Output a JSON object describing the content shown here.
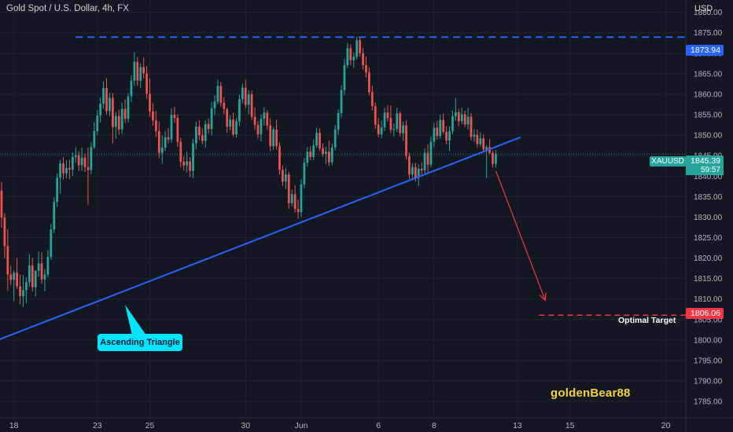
{
  "header": {
    "title": "Gold Spot / U.S. Dollar, 4h, FX",
    "currency": "USD"
  },
  "price_tags": {
    "top_level": "1873.94",
    "current_symbol": "XAUUSD",
    "current_price": "1845.39",
    "countdown": "59:57",
    "target_level": "1806.06"
  },
  "annotations": {
    "callout": "Ascending Triangle",
    "target_label": "Optimal Target",
    "watermark": "goldenBear88"
  },
  "colors": {
    "background": "#131722",
    "up": "#26a69a",
    "down": "#ef5350",
    "trendline": "#2962ff",
    "resistance": "#2962ff",
    "target": "#f23645",
    "callout": "#00e5ff",
    "watermark": "#f5d33c"
  },
  "chart_data": {
    "type": "candlestick",
    "title": "Gold Spot / U.S. Dollar, 4h, FX",
    "y_ticks": [
      1785,
      1790,
      1795,
      1800,
      1805,
      1810,
      1815,
      1820,
      1825,
      1830,
      1835,
      1840,
      1845,
      1850,
      1855,
      1860,
      1865,
      1870,
      1875,
      1880
    ],
    "y_tick_labels": [
      "1785.00",
      "1790.00",
      "1795.00",
      "1800.00",
      "1805.00",
      "1810.00",
      "1815.00",
      "1820.00",
      "1825.00",
      "1830.00",
      "1835.00",
      "1840.00",
      "1845.00",
      "1850.00",
      "1855.00",
      "1860.00",
      "1865.00",
      "1870.00",
      "1875.00",
      "1880.00"
    ],
    "ylim": [
      1781,
      1883
    ],
    "x_ticks": [
      "18",
      "23",
      "25",
      "30",
      "Jun",
      "6",
      "8",
      "13",
      "15",
      "20"
    ],
    "x_tick_bars": [
      4,
      31,
      48,
      79,
      97,
      122,
      140,
      167,
      184,
      215
    ],
    "n_bars_visible": 222,
    "grid": true,
    "resistance": {
      "level": 1873.94,
      "start_bar": 24
    },
    "trendline": {
      "start": [
        0,
        1800.2
      ],
      "end": [
        168,
        1849.5
      ]
    },
    "projection": {
      "start": [
        160,
        1841.3
      ],
      "end": [
        176,
        1809.7
      ]
    },
    "target": {
      "level": 1806.06,
      "start_bar": 174
    },
    "current_price": 1845.39,
    "candles": [
      [
        1836.5,
        1838.6,
        1827.4,
        1829.9
      ],
      [
        1829.9,
        1831.0,
        1820.0,
        1822.9
      ],
      [
        1822.9,
        1827.0,
        1812.0,
        1816.0
      ],
      [
        1816.0,
        1818.1,
        1813.4,
        1814.7
      ],
      [
        1814.7,
        1817.0,
        1809.5,
        1816.4
      ],
      [
        1816.4,
        1820.0,
        1812.5,
        1813.1
      ],
      [
        1813.1,
        1816.0,
        1808.7,
        1810.7
      ],
      [
        1810.7,
        1815.8,
        1808.1,
        1812.2
      ],
      [
        1812.2,
        1815.3,
        1809.0,
        1814.1
      ],
      [
        1814.1,
        1821.0,
        1813.0,
        1818.2
      ],
      [
        1818.2,
        1820.1,
        1811.8,
        1812.9
      ],
      [
        1812.9,
        1817.0,
        1810.6,
        1816.9
      ],
      [
        1816.9,
        1821.6,
        1815.4,
        1818.7
      ],
      [
        1818.7,
        1821.4,
        1813.7,
        1814.8
      ],
      [
        1814.8,
        1817.4,
        1811.9,
        1816.0
      ],
      [
        1816.0,
        1822.0,
        1815.3,
        1820.3
      ],
      [
        1820.3,
        1828.3,
        1819.6,
        1827.0
      ],
      [
        1827.0,
        1834.8,
        1826.1,
        1833.7
      ],
      [
        1833.7,
        1840.7,
        1832.5,
        1839.6
      ],
      [
        1839.6,
        1844.0,
        1835.7,
        1843.1
      ],
      [
        1843.1,
        1844.6,
        1839.2,
        1840.7
      ],
      [
        1840.7,
        1843.9,
        1839.5,
        1842.0
      ],
      [
        1842.0,
        1844.0,
        1839.3,
        1841.6
      ],
      [
        1841.6,
        1845.8,
        1840.1,
        1844.7
      ],
      [
        1844.7,
        1847.1,
        1843.2,
        1845.1
      ],
      [
        1845.1,
        1846.0,
        1841.2,
        1842.7
      ],
      [
        1842.7,
        1846.9,
        1841.2,
        1844.5
      ],
      [
        1844.5,
        1845.5,
        1841.0,
        1842.2
      ],
      [
        1842.2,
        1847.0,
        1833.0,
        1841.5
      ],
      [
        1841.5,
        1848.2,
        1840.4,
        1847.1
      ],
      [
        1847.1,
        1853.2,
        1846.6,
        1851.0
      ],
      [
        1851.0,
        1856.1,
        1850.0,
        1854.8
      ],
      [
        1854.8,
        1859.2,
        1853.1,
        1857.7
      ],
      [
        1857.7,
        1863.2,
        1856.5,
        1861.5
      ],
      [
        1861.5,
        1863.9,
        1855.0,
        1855.9
      ],
      [
        1855.9,
        1860.4,
        1854.6,
        1859.1
      ],
      [
        1859.1,
        1860.3,
        1848.0,
        1852.0
      ],
      [
        1852.0,
        1855.7,
        1849.1,
        1854.7
      ],
      [
        1854.7,
        1856.2,
        1850.1,
        1851.4
      ],
      [
        1851.4,
        1857.9,
        1850.3,
        1856.4
      ],
      [
        1856.4,
        1858.8,
        1853.0,
        1854.0
      ],
      [
        1854.0,
        1860.3,
        1853.1,
        1859.5
      ],
      [
        1859.5,
        1864.6,
        1858.1,
        1863.3
      ],
      [
        1863.3,
        1870.3,
        1862.1,
        1867.9
      ],
      [
        1867.9,
        1869.1,
        1862.0,
        1863.3
      ],
      [
        1863.3,
        1867.5,
        1861.6,
        1866.6
      ],
      [
        1866.6,
        1868.9,
        1863.8,
        1865.1
      ],
      [
        1865.1,
        1866.9,
        1858.9,
        1860.1
      ],
      [
        1860.1,
        1863.9,
        1854.5,
        1855.8
      ],
      [
        1855.8,
        1857.8,
        1852.3,
        1853.6
      ],
      [
        1853.6,
        1856.0,
        1849.6,
        1851.0
      ],
      [
        1851.0,
        1853.3,
        1844.4,
        1845.7
      ],
      [
        1845.7,
        1850.0,
        1843.0,
        1847.0
      ],
      [
        1847.0,
        1851.0,
        1846.1,
        1849.5
      ],
      [
        1849.5,
        1851.7,
        1848.0,
        1849.0
      ],
      [
        1849.0,
        1856.6,
        1848.2,
        1855.0
      ],
      [
        1855.0,
        1856.9,
        1853.0,
        1854.2
      ],
      [
        1854.2,
        1855.1,
        1847.1,
        1848.4
      ],
      [
        1848.4,
        1849.4,
        1842.2,
        1843.5
      ],
      [
        1843.5,
        1844.9,
        1841.4,
        1842.6
      ],
      [
        1842.6,
        1846.0,
        1840.9,
        1843.6
      ],
      [
        1843.6,
        1844.6,
        1839.8,
        1841.3
      ],
      [
        1841.3,
        1849.1,
        1839.5,
        1848.0
      ],
      [
        1848.0,
        1853.3,
        1846.6,
        1852.1
      ],
      [
        1852.1,
        1853.7,
        1848.8,
        1850.0
      ],
      [
        1850.0,
        1851.7,
        1847.8,
        1848.6
      ],
      [
        1848.6,
        1853.7,
        1847.0,
        1852.7
      ],
      [
        1852.7,
        1854.1,
        1850.4,
        1851.5
      ],
      [
        1851.5,
        1858.0,
        1850.0,
        1856.5
      ],
      [
        1856.5,
        1859.7,
        1854.9,
        1858.2
      ],
      [
        1858.2,
        1863.5,
        1857.5,
        1862.0
      ],
      [
        1862.0,
        1863.0,
        1857.0,
        1857.9
      ],
      [
        1857.9,
        1859.3,
        1855.1,
        1856.4
      ],
      [
        1856.4,
        1856.7,
        1850.6,
        1852.1
      ],
      [
        1852.1,
        1854.9,
        1851.2,
        1853.8
      ],
      [
        1853.8,
        1855.5,
        1849.6,
        1850.2
      ],
      [
        1850.2,
        1854.2,
        1849.4,
        1853.4
      ],
      [
        1853.4,
        1859.9,
        1852.2,
        1858.8
      ],
      [
        1858.8,
        1862.6,
        1857.8,
        1861.6
      ],
      [
        1861.6,
        1863.5,
        1856.6,
        1857.4
      ],
      [
        1857.4,
        1861.0,
        1855.1,
        1860.0
      ],
      [
        1860.0,
        1860.9,
        1853.7,
        1854.5
      ],
      [
        1854.5,
        1856.8,
        1851.3,
        1852.5
      ],
      [
        1852.5,
        1853.5,
        1849.1,
        1850.2
      ],
      [
        1850.2,
        1855.1,
        1848.5,
        1854.0
      ],
      [
        1854.0,
        1856.8,
        1852.3,
        1855.5
      ],
      [
        1855.5,
        1856.1,
        1851.3,
        1852.4
      ],
      [
        1852.4,
        1854.2,
        1846.1,
        1847.3
      ],
      [
        1847.3,
        1852.0,
        1846.4,
        1851.4
      ],
      [
        1851.4,
        1853.8,
        1846.5,
        1847.3
      ],
      [
        1847.3,
        1848.3,
        1840.4,
        1841.5
      ],
      [
        1841.5,
        1842.6,
        1837.6,
        1838.7
      ],
      [
        1838.7,
        1842.0,
        1836.8,
        1840.4
      ],
      [
        1840.4,
        1841.0,
        1832.0,
        1833.4
      ],
      [
        1833.4,
        1836.7,
        1832.6,
        1835.6
      ],
      [
        1835.6,
        1837.8,
        1831.1,
        1832.0
      ],
      [
        1832.0,
        1834.3,
        1829.6,
        1831.2
      ],
      [
        1831.2,
        1839.3,
        1830.0,
        1838.0
      ],
      [
        1838.0,
        1844.4,
        1837.1,
        1843.3
      ],
      [
        1843.3,
        1847.1,
        1842.4,
        1846.0
      ],
      [
        1846.0,
        1847.3,
        1843.9,
        1844.7
      ],
      [
        1844.7,
        1848.9,
        1843.9,
        1847.5
      ],
      [
        1847.5,
        1851.8,
        1846.9,
        1850.6
      ],
      [
        1850.6,
        1851.7,
        1846.1,
        1846.8
      ],
      [
        1846.8,
        1848.0,
        1844.7,
        1845.4
      ],
      [
        1845.4,
        1847.2,
        1842.9,
        1846.0
      ],
      [
        1846.0,
        1848.7,
        1842.5,
        1843.4
      ],
      [
        1843.4,
        1848.0,
        1842.7,
        1847.0
      ],
      [
        1847.0,
        1852.5,
        1846.3,
        1851.4
      ],
      [
        1851.4,
        1856.3,
        1850.1,
        1855.4
      ],
      [
        1855.4,
        1862.2,
        1854.3,
        1861.0
      ],
      [
        1861.0,
        1868.6,
        1859.7,
        1867.1
      ],
      [
        1867.1,
        1872.5,
        1866.4,
        1871.2
      ],
      [
        1871.2,
        1872.2,
        1867.1,
        1868.3
      ],
      [
        1868.3,
        1870.2,
        1866.5,
        1869.1
      ],
      [
        1869.1,
        1874.0,
        1868.4,
        1873.2
      ],
      [
        1873.2,
        1874.1,
        1869.1,
        1870.0
      ],
      [
        1870.0,
        1871.3,
        1866.0,
        1867.1
      ],
      [
        1867.1,
        1869.2,
        1864.0,
        1865.3
      ],
      [
        1865.3,
        1866.6,
        1859.7,
        1860.5
      ],
      [
        1860.5,
        1862.1,
        1856.0,
        1857.1
      ],
      [
        1857.1,
        1858.0,
        1851.5,
        1852.6
      ],
      [
        1852.6,
        1854.2,
        1849.5,
        1850.2
      ],
      [
        1850.2,
        1853.6,
        1849.2,
        1851.9
      ],
      [
        1851.9,
        1856.6,
        1851.0,
        1855.5
      ],
      [
        1855.5,
        1857.3,
        1853.3,
        1854.2
      ],
      [
        1854.2,
        1857.3,
        1850.5,
        1851.3
      ],
      [
        1851.3,
        1852.9,
        1849.7,
        1851.5
      ],
      [
        1851.5,
        1856.7,
        1850.8,
        1855.3
      ],
      [
        1855.3,
        1855.8,
        1849.7,
        1850.5
      ],
      [
        1850.5,
        1853.3,
        1848.6,
        1852.4
      ],
      [
        1852.4,
        1853.6,
        1844.1,
        1844.9
      ],
      [
        1844.9,
        1845.7,
        1839.3,
        1840.4
      ],
      [
        1840.4,
        1843.2,
        1839.0,
        1842.2
      ],
      [
        1842.2,
        1843.3,
        1838.7,
        1839.6
      ],
      [
        1839.6,
        1842.9,
        1837.6,
        1841.8
      ],
      [
        1841.8,
        1843.4,
        1839.9,
        1841.4
      ],
      [
        1841.4,
        1846.8,
        1840.4,
        1845.7
      ],
      [
        1845.7,
        1847.8,
        1840.9,
        1842.8
      ],
      [
        1842.8,
        1849.7,
        1842.1,
        1848.4
      ],
      [
        1848.4,
        1853.0,
        1847.1,
        1851.8
      ],
      [
        1851.8,
        1853.5,
        1848.9,
        1849.8
      ],
      [
        1849.8,
        1855.0,
        1849.1,
        1853.7
      ],
      [
        1853.7,
        1855.3,
        1850.3,
        1850.8
      ],
      [
        1850.8,
        1852.1,
        1847.8,
        1848.7
      ],
      [
        1848.7,
        1852.2,
        1846.1,
        1851.0
      ],
      [
        1851.0,
        1856.0,
        1850.2,
        1854.6
      ],
      [
        1854.6,
        1859.0,
        1853.6,
        1855.6
      ],
      [
        1855.6,
        1856.5,
        1852.2,
        1853.4
      ],
      [
        1853.4,
        1856.7,
        1852.7,
        1855.1
      ],
      [
        1855.1,
        1856.0,
        1851.9,
        1852.6
      ],
      [
        1852.6,
        1856.7,
        1851.4,
        1854.5
      ],
      [
        1854.5,
        1855.4,
        1848.7,
        1849.6
      ],
      [
        1849.6,
        1851.5,
        1848.4,
        1850.1
      ],
      [
        1850.1,
        1851.3,
        1847.0,
        1847.8
      ],
      [
        1847.8,
        1850.7,
        1847.2,
        1849.2
      ],
      [
        1849.2,
        1850.2,
        1845.8,
        1846.5
      ],
      [
        1846.5,
        1847.6,
        1839.5,
        1847.1
      ],
      [
        1847.1,
        1849.0,
        1845.3,
        1845.7
      ],
      [
        1845.7,
        1846.3,
        1842.1,
        1843.0
      ],
      [
        1843.0,
        1846.4,
        1842.1,
        1845.39
      ]
    ]
  }
}
